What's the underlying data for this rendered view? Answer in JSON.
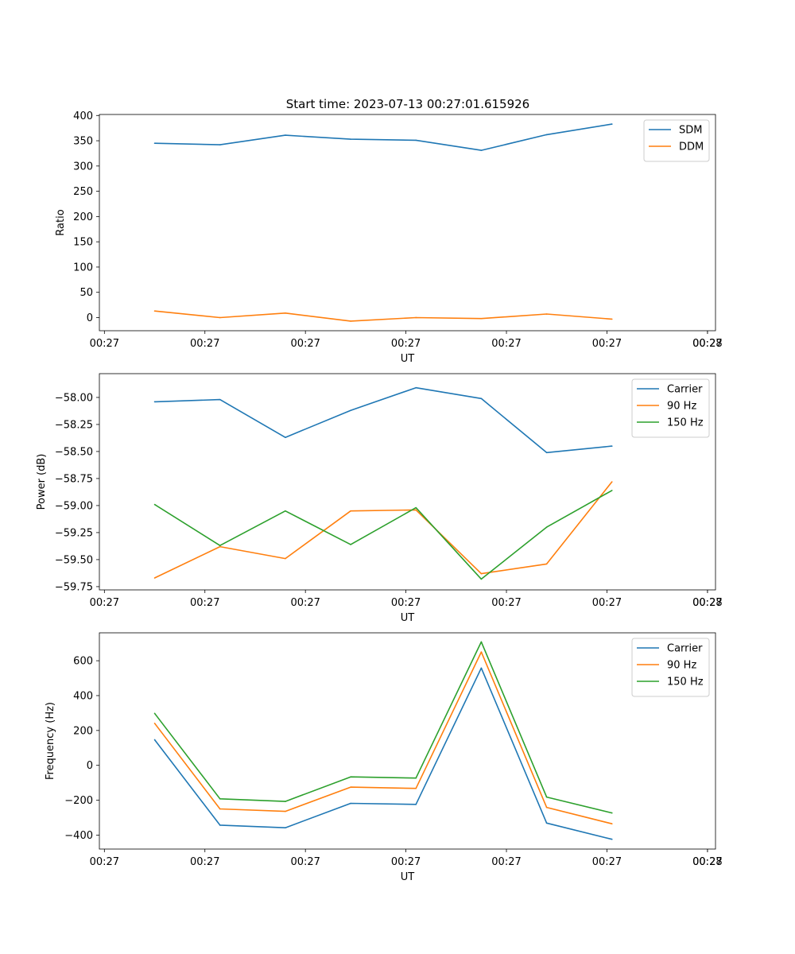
{
  "figure_title": "Start time: 2023-07-13 00:27:01.615926",
  "colors": {
    "blue": "#1f77b4",
    "orange": "#ff7f0e",
    "green": "#2ca02c"
  },
  "chart_data": [
    {
      "type": "line",
      "title": "Start time: 2023-07-13 00:27:01.615926",
      "xlabel": "UT",
      "ylabel": "Ratio",
      "x_tick_labels": [
        "00:27",
        "00:27",
        "00:27",
        "00:27",
        "00:27",
        "00:27",
        "00:27"
      ],
      "x_tick_values": [
        0,
        1,
        2,
        3,
        4,
        5,
        6
      ],
      "y_tick_labels": [
        "0",
        "50",
        "100",
        "150",
        "200",
        "250",
        "300",
        "350",
        "400"
      ],
      "y_tick_values": [
        0,
        50,
        100,
        150,
        200,
        250,
        300,
        350,
        400
      ],
      "x_range": [
        -0.05,
        6.08
      ],
      "ylim": [
        -26,
        402
      ],
      "legend": "top-right",
      "x": [
        0.5,
        1.15,
        1.8,
        2.45,
        3.1,
        3.75,
        4.4,
        5.05
      ],
      "series": [
        {
          "name": "SDM",
          "color": "#1f77b4",
          "values": [
            345,
            342,
            361,
            353,
            351,
            331,
            362,
            383
          ]
        },
        {
          "name": "DDM",
          "color": "#ff7f0e",
          "values": [
            13,
            0,
            9,
            -7,
            0,
            -2,
            7,
            -3
          ]
        }
      ]
    },
    {
      "type": "line",
      "title": "",
      "xlabel": "UT",
      "ylabel": "Power (dB)",
      "x_tick_labels": [
        "00:27",
        "00:27",
        "00:27",
        "00:27",
        "00:27",
        "00:27",
        "00:27"
      ],
      "x_tick_values": [
        0,
        1,
        2,
        3,
        4,
        5,
        6
      ],
      "y_tick_labels": [
        "−59.75",
        "−59.50",
        "−59.25",
        "−59.00",
        "−58.75",
        "−58.50",
        "−58.25",
        "−58.00"
      ],
      "y_tick_values": [
        -59.75,
        -59.5,
        -59.25,
        -59.0,
        -58.75,
        -58.5,
        -58.25,
        -58.0
      ],
      "x_range": [
        -0.05,
        6.08
      ],
      "ylim": [
        -59.78,
        -57.78
      ],
      "legend": "top-right",
      "x": [
        0.5,
        1.15,
        1.8,
        2.45,
        3.1,
        3.75,
        4.4,
        5.05
      ],
      "series": [
        {
          "name": "Carrier",
          "color": "#1f77b4",
          "values": [
            -58.04,
            -58.02,
            -58.37,
            -58.12,
            -57.91,
            -58.01,
            -58.51,
            -58.45
          ]
        },
        {
          "name": "90 Hz",
          "color": "#ff7f0e",
          "values": [
            -59.67,
            -59.38,
            -59.49,
            -59.05,
            -59.04,
            -59.63,
            -59.54,
            -58.78
          ]
        },
        {
          "name": "150 Hz",
          "color": "#2ca02c",
          "values": [
            -58.99,
            -59.37,
            -59.05,
            -59.36,
            -59.02,
            -59.68,
            -59.2,
            -58.86
          ]
        }
      ]
    },
    {
      "type": "line",
      "title": "",
      "xlabel": "UT",
      "ylabel": "Frequency (Hz)",
      "x_tick_labels": [
        "00:27",
        "00:27",
        "00:27",
        "00:27",
        "00:27",
        "00:27",
        "00:27"
      ],
      "x_tick_values": [
        0,
        1,
        2,
        3,
        4,
        5,
        6
      ],
      "y_tick_labels": [
        "−400",
        "−200",
        "0",
        "200",
        "400",
        "600"
      ],
      "y_tick_values": [
        -400,
        -200,
        0,
        200,
        400,
        600
      ],
      "x_range": [
        -0.05,
        6.08
      ],
      "ylim": [
        -480,
        760
      ],
      "legend": "top-right",
      "x": [
        0.5,
        1.15,
        1.8,
        2.45,
        3.1,
        3.75,
        4.4,
        5.05
      ],
      "series": [
        {
          "name": "Carrier",
          "color": "#1f77b4",
          "values": [
            147,
            -343,
            -358,
            -218,
            -224,
            558,
            -331,
            -424
          ]
        },
        {
          "name": "90 Hz",
          "color": "#ff7f0e",
          "values": [
            241,
            -250,
            -264,
            -125,
            -132,
            650,
            -241,
            -335
          ]
        },
        {
          "name": "150 Hz",
          "color": "#2ca02c",
          "values": [
            298,
            -192,
            -207,
            -66,
            -73,
            708,
            -182,
            -273
          ]
        }
      ]
    }
  ],
  "extra_x_tick_label": "00:28"
}
